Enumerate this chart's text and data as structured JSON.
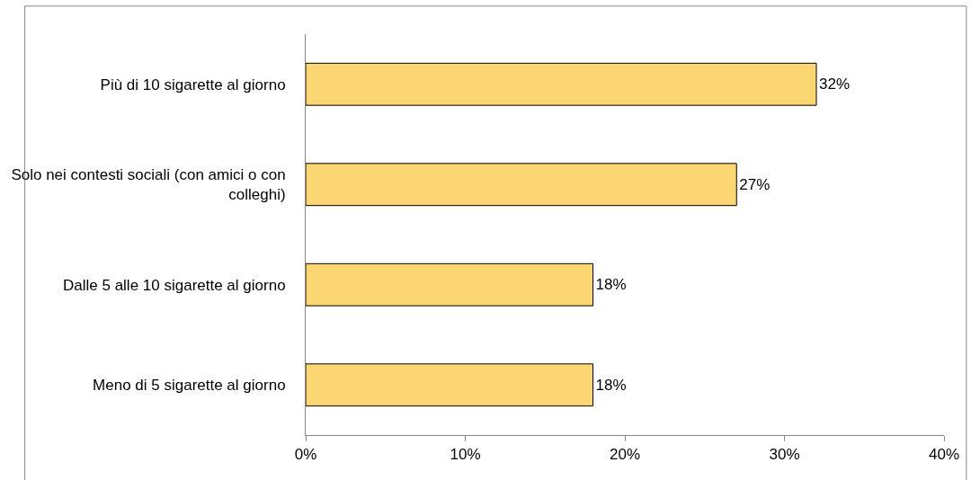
{
  "chart_data": {
    "type": "bar",
    "orientation": "horizontal",
    "categories": [
      "Più di 10 sigarette al giorno",
      "Solo nei contesti sociali (con amici o con colleghi)",
      "Dalle 5 alle 10 sigarette al giorno",
      "Meno di 5 sigarette al giorno"
    ],
    "values": [
      32,
      27,
      18,
      18
    ],
    "value_labels": [
      "32%",
      "27%",
      "18%",
      "18%"
    ],
    "color": "#fcd672",
    "xlim": [
      0,
      40
    ],
    "xticks": [
      {
        "value": 0,
        "label": "0%"
      },
      {
        "value": 10,
        "label": "10%"
      },
      {
        "value": 20,
        "label": "20%"
      },
      {
        "value": 30,
        "label": "30%"
      },
      {
        "value": 40,
        "label": "40%"
      }
    ]
  }
}
